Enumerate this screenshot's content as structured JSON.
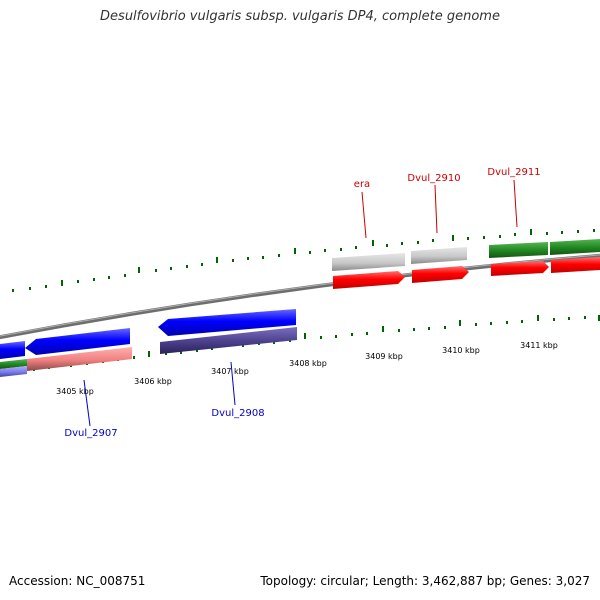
{
  "title": "Desulfovibrio vulgaris subsp. vulgaris DP4, complete genome",
  "accession": "Accession: NC_008751",
  "topology": "Topology: circular; Length: 3,462,887 bp; Genes: 3,027",
  "scale_labels": [
    "3405 kbp",
    "3406 kbp",
    "3407 kbp",
    "3408 kbp",
    "3409 kbp",
    "3410 kbp",
    "3411 kbp"
  ],
  "genes": [
    {
      "label": "Dvul_2907",
      "strand": "reverse",
      "color": "#0000cc"
    },
    {
      "label": "Dvul_2908",
      "strand": "reverse",
      "color": "#0000cc"
    },
    {
      "label": "era",
      "strand": "forward",
      "color": "#cc0000"
    },
    {
      "label": "Dvul_2910",
      "strand": "forward",
      "color": "#cc0000"
    },
    {
      "label": "Dvul_2911",
      "strand": "forward",
      "color": "#cc0000"
    }
  ],
  "colors": {
    "forward_cds": "#ff0000",
    "reverse_cds": "#0000ff",
    "grey_feature": "#c8c8c8",
    "green_feature": "#228b22",
    "pink_feature": "#f08080",
    "purple_feature": "#4b3f8c",
    "backbone": "#888888",
    "tick": "#006400"
  }
}
